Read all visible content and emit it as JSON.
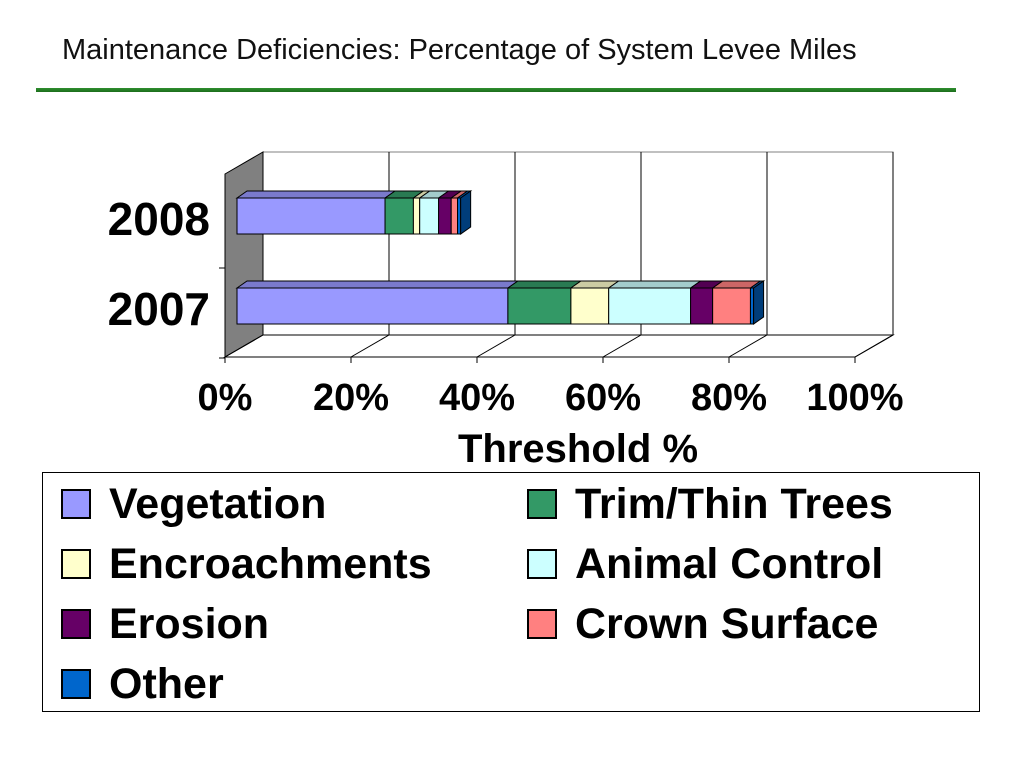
{
  "slide": {
    "title": "Maintenance Deficiencies: Percentage of System Levee Miles"
  },
  "chart_data": {
    "type": "bar",
    "orientation": "horizontal",
    "stacked": true,
    "three_d": true,
    "categories": [
      "2008",
      "2007"
    ],
    "series": [
      {
        "name": "Vegetation",
        "values": [
          23.5,
          43
        ],
        "color": "#9999ff"
      },
      {
        "name": "Trim/Thin Trees",
        "values": [
          4.5,
          10
        ],
        "color": "#339966"
      },
      {
        "name": "Encroachments",
        "values": [
          1,
          6
        ],
        "color": "#ffffcc"
      },
      {
        "name": "Animal Control",
        "values": [
          3,
          13
        ],
        "color": "#ccffff"
      },
      {
        "name": "Erosion",
        "values": [
          2,
          3.5
        ],
        "color": "#660066"
      },
      {
        "name": "Crown Surface",
        "values": [
          1,
          6
        ],
        "color": "#ff8080"
      },
      {
        "name": "Other",
        "values": [
          0.5,
          0.5
        ],
        "color": "#0066cc"
      }
    ],
    "xlabel": "Threshold %",
    "ylabel": "",
    "xlim": [
      0,
      100
    ],
    "x_ticks": [
      "0%",
      "20%",
      "40%",
      "60%",
      "80%",
      "100%"
    ],
    "grid": "vertical",
    "legend_position": "bottom"
  }
}
